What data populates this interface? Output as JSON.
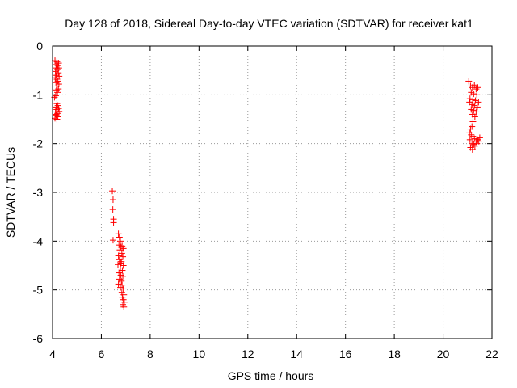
{
  "chart_data": {
    "type": "scatter",
    "title": "Day 128 of 2018, Sidereal Day-to-day VTEC variation (SDTVAR) for receiver kat1",
    "xlabel": "GPS time / hours",
    "ylabel": "SDTVAR / TECUs",
    "xlim": [
      4,
      22
    ],
    "ylim": [
      -6,
      0
    ],
    "xticks": [
      4,
      6,
      8,
      10,
      12,
      14,
      16,
      18,
      20,
      22
    ],
    "yticks": [
      0,
      -1,
      -2,
      -3,
      -4,
      -5,
      -6
    ],
    "grid": true,
    "grid_style": "dotted",
    "marker": "+",
    "marker_color": "#ff0000",
    "series": [
      {
        "name": "kat1",
        "points": [
          [
            4.1,
            -0.3
          ],
          [
            4.14,
            -0.38
          ],
          [
            4.18,
            -0.32
          ],
          [
            4.22,
            -0.4
          ],
          [
            4.16,
            -0.45
          ],
          [
            4.25,
            -0.35
          ],
          [
            4.12,
            -0.52
          ],
          [
            4.2,
            -0.48
          ],
          [
            4.15,
            -0.6
          ],
          [
            4.24,
            -0.55
          ],
          [
            4.18,
            -0.68
          ],
          [
            4.27,
            -0.62
          ],
          [
            4.14,
            -0.75
          ],
          [
            4.22,
            -0.72
          ],
          [
            4.19,
            -0.82
          ],
          [
            4.26,
            -0.78
          ],
          [
            4.16,
            -0.9
          ],
          [
            4.24,
            -0.88
          ],
          [
            4.2,
            -0.95
          ],
          [
            4.13,
            -1.02
          ],
          [
            4.08,
            -1.05
          ],
          [
            4.18,
            -1.18
          ],
          [
            4.15,
            -1.25
          ],
          [
            4.22,
            -1.22
          ],
          [
            4.17,
            -1.3
          ],
          [
            4.25,
            -1.28
          ],
          [
            4.12,
            -1.35
          ],
          [
            4.2,
            -1.38
          ],
          [
            4.27,
            -1.34
          ],
          [
            4.15,
            -1.42
          ],
          [
            4.22,
            -1.45
          ],
          [
            4.1,
            -1.48
          ],
          [
            4.18,
            -1.5
          ],
          [
            4.13,
            -1.4
          ],
          [
            4.26,
            -0.45
          ],
          [
            4.11,
            -0.65
          ],
          [
            6.45,
            -2.97
          ],
          [
            6.48,
            -3.15
          ],
          [
            6.47,
            -3.35
          ],
          [
            6.5,
            -3.55
          ],
          [
            6.5,
            -3.62
          ],
          [
            6.48,
            -3.98
          ],
          [
            6.7,
            -3.85
          ],
          [
            6.74,
            -3.92
          ],
          [
            6.78,
            -4.0
          ],
          [
            6.72,
            -4.08
          ],
          [
            6.8,
            -4.12
          ],
          [
            6.85,
            -4.1
          ],
          [
            6.9,
            -4.15
          ],
          [
            6.76,
            -4.2
          ],
          [
            6.84,
            -4.25
          ],
          [
            6.7,
            -4.3
          ],
          [
            6.88,
            -4.32
          ],
          [
            6.74,
            -4.38
          ],
          [
            6.82,
            -4.42
          ],
          [
            6.68,
            -4.48
          ],
          [
            6.9,
            -4.5
          ],
          [
            6.78,
            -4.55
          ],
          [
            6.86,
            -4.6
          ],
          [
            6.72,
            -4.65
          ],
          [
            6.8,
            -4.7
          ],
          [
            6.88,
            -4.72
          ],
          [
            6.74,
            -4.78
          ],
          [
            6.82,
            -4.82
          ],
          [
            6.7,
            -4.88
          ],
          [
            6.85,
            -4.9
          ],
          [
            6.78,
            -4.95
          ],
          [
            6.9,
            -4.98
          ],
          [
            6.84,
            -5.05
          ],
          [
            6.92,
            -5.1
          ],
          [
            6.86,
            -5.15
          ],
          [
            6.9,
            -5.2
          ],
          [
            6.94,
            -5.25
          ],
          [
            6.88,
            -5.3
          ],
          [
            6.92,
            -5.35
          ],
          [
            6.8,
            -4.45
          ],
          [
            6.76,
            -4.18
          ],
          [
            21.05,
            -0.72
          ],
          [
            21.12,
            -0.82
          ],
          [
            21.2,
            -0.85
          ],
          [
            21.28,
            -0.8
          ],
          [
            21.35,
            -0.88
          ],
          [
            21.42,
            -0.85
          ],
          [
            21.15,
            -0.95
          ],
          [
            21.25,
            -0.98
          ],
          [
            21.38,
            -1.0
          ],
          [
            21.1,
            -1.08
          ],
          [
            21.22,
            -1.1
          ],
          [
            21.32,
            -1.12
          ],
          [
            21.45,
            -1.15
          ],
          [
            21.18,
            -1.2
          ],
          [
            21.28,
            -1.22
          ],
          [
            21.4,
            -1.25
          ],
          [
            21.15,
            -1.3
          ],
          [
            21.25,
            -1.32
          ],
          [
            21.35,
            -1.35
          ],
          [
            21.2,
            -1.4
          ],
          [
            21.3,
            -1.45
          ],
          [
            21.22,
            -1.55
          ],
          [
            21.18,
            -1.65
          ],
          [
            21.12,
            -1.7
          ],
          [
            21.08,
            -1.78
          ],
          [
            21.15,
            -1.82
          ],
          [
            21.22,
            -1.85
          ],
          [
            21.1,
            -1.92
          ],
          [
            21.28,
            -1.9
          ],
          [
            21.35,
            -1.95
          ],
          [
            21.42,
            -1.92
          ],
          [
            21.5,
            -1.88
          ],
          [
            21.18,
            -2.0
          ],
          [
            21.25,
            -2.02
          ],
          [
            21.12,
            -2.08
          ],
          [
            21.2,
            -2.12
          ],
          [
            21.3,
            -2.05
          ],
          [
            21.38,
            -2.0
          ],
          [
            21.46,
            -1.95
          ],
          [
            21.08,
            -1.15
          ]
        ]
      }
    ]
  }
}
